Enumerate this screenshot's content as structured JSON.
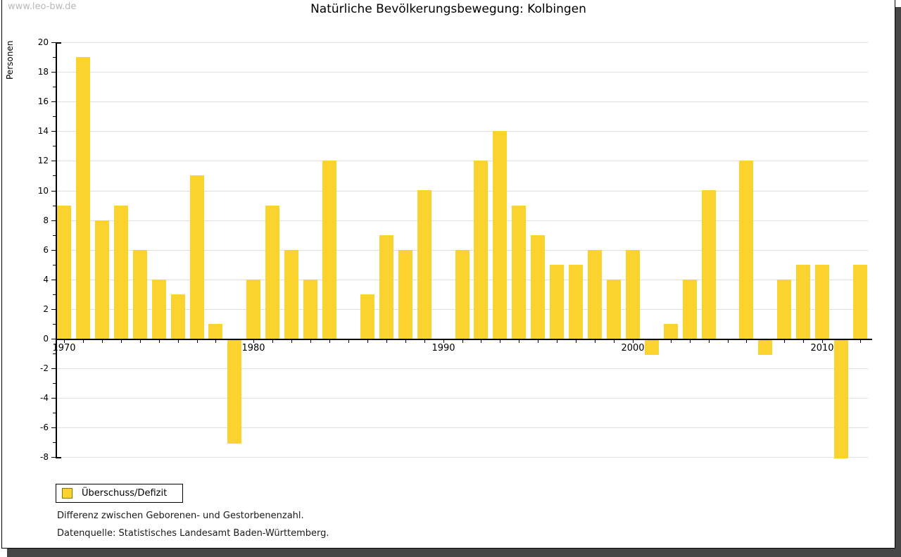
{
  "page": {
    "watermark": "www.leo-bw.de"
  },
  "chart_data": {
    "type": "bar",
    "title": "Natürliche Bevölkerungsbewegung: Kolbingen",
    "xlabel": "",
    "ylabel": "Personen",
    "ylim": [
      -8,
      20
    ],
    "y_major_tick_step": 2,
    "y_minor_tick_step": 1,
    "grid": true,
    "gridline_color": "#e0e0e0",
    "bar_color": "#FBD32E",
    "legend_position": "bottom-left",
    "series_name": "Überschuss/Defizit",
    "x": [
      1970,
      1971,
      1972,
      1973,
      1974,
      1975,
      1976,
      1977,
      1978,
      1979,
      1980,
      1981,
      1982,
      1983,
      1984,
      1985,
      1986,
      1987,
      1988,
      1989,
      1990,
      1991,
      1992,
      1993,
      1994,
      1995,
      1996,
      1997,
      1998,
      1999,
      2000,
      2001,
      2002,
      2003,
      2004,
      2005,
      2006,
      2007,
      2008,
      2009,
      2010,
      2011,
      2012
    ],
    "values": [
      9,
      19,
      8,
      9,
      6,
      4,
      3,
      11,
      1,
      -7,
      4,
      9,
      6,
      4,
      12,
      0,
      3,
      7,
      6,
      10,
      0,
      6,
      12,
      14,
      9,
      7,
      5,
      5,
      6,
      4,
      6,
      -1,
      1,
      4,
      10,
      0,
      12,
      -1,
      4,
      5,
      5,
      -8,
      5
    ],
    "x_decade_labels": [
      "1970",
      "1980",
      "1990",
      "2000",
      "2010"
    ]
  },
  "legend": {
    "label": "Überschuss/Defizit",
    "swatch_color": "#FBD32E"
  },
  "footer": {
    "line1": "Differenz zwischen Geborenen- und Gestorbenenzahl.",
    "line2": "Datenquelle: Statistisches Landesamt Baden-Württemberg."
  }
}
